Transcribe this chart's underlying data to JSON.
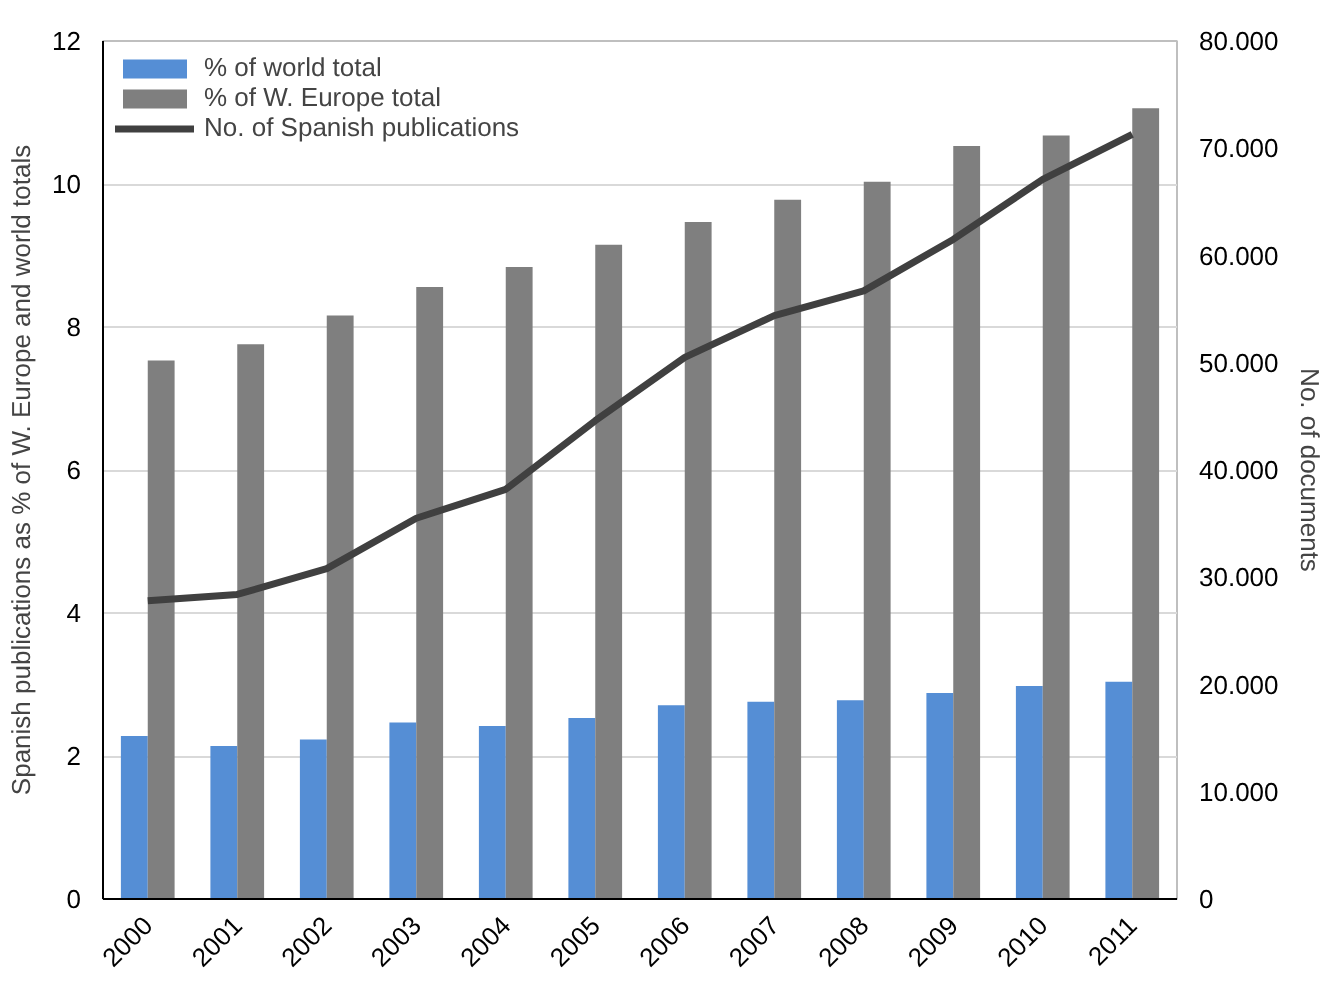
{
  "chart_data": {
    "type": "bar",
    "categories": [
      "2000",
      "2001",
      "2002",
      "2003",
      "2004",
      "2005",
      "2006",
      "2007",
      "2008",
      "2009",
      "2010",
      "2011"
    ],
    "ylabel": "Spanish publications as % of W. Europe and world totals",
    "y2label": "No. of documents",
    "series": [
      {
        "name": "% of world total",
        "color": "#558ed5",
        "values": [
          2.28,
          2.14,
          2.23,
          2.47,
          2.42,
          2.53,
          2.71,
          2.76,
          2.78,
          2.88,
          2.98,
          3.04
        ]
      },
      {
        "name": "% of W. Europe total",
        "color": "#7f7f7f",
        "values": [
          7.53,
          7.76,
          8.16,
          8.56,
          8.84,
          9.15,
          9.47,
          9.78,
          10.03,
          10.53,
          10.68,
          11.06
        ]
      },
      {
        "name": "No. of Spanish publications",
        "type": "line",
        "axis": "y2",
        "color": "#404040",
        "values": [
          27800,
          28400,
          30800,
          35500,
          38200,
          44600,
          50500,
          54400,
          56700,
          61500,
          67100,
          71300
        ]
      }
    ],
    "ylim": [
      0,
      12
    ],
    "yticks": [
      0,
      2,
      4,
      6,
      8,
      10,
      12
    ],
    "y2lim": [
      0,
      80000
    ],
    "y2ticks": [
      {
        "value": 0,
        "label": "0"
      },
      {
        "value": 10000,
        "label": "10.000"
      },
      {
        "value": 20000,
        "label": "20.000"
      },
      {
        "value": 30000,
        "label": "30.000"
      },
      {
        "value": 40000,
        "label": "40.000"
      },
      {
        "value": 50000,
        "label": "50.000"
      },
      {
        "value": 60000,
        "label": "60.000"
      },
      {
        "value": 70000,
        "label": "70.000"
      },
      {
        "value": 80000,
        "label": "80.000"
      }
    ],
    "grid": "y",
    "legend": "top left"
  }
}
